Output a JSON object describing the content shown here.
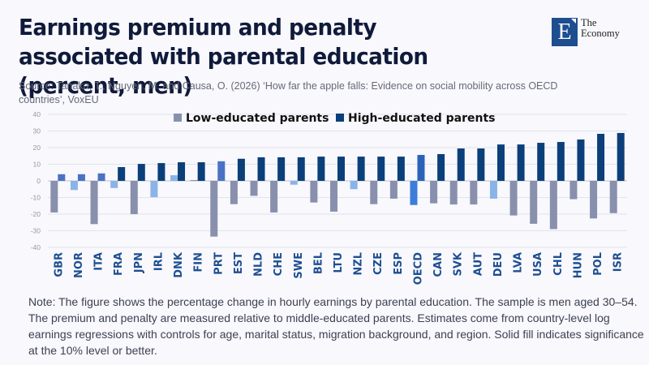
{
  "header": {
    "title": "Earnings premium and penalty associated with parental education (percent, men)",
    "source": "Source: Tanaka, T., Nguyen, M. and Causa, O. (2026) ‘How far the apple falls: Evidence on social mobility across OECD countries’, VoxEU"
  },
  "logo": {
    "letter": "E",
    "line1": "The",
    "line2": "Economy"
  },
  "note": "Note: The figure shows the percentage change in hourly earnings by parental education. The sample is men aged 30–54. The premium and penalty are measured relative to middle-educated parents. Estimates come from country-level log earnings regressions with controls for age, marital status, migration background, and region. Solid fill indicates significance at the 10% level or better.",
  "colors": {
    "low_significant": "#8890ad",
    "low_not_significant": "#8ab4e8",
    "high_significant": "#0b3f7a",
    "high_not_significant": "#4a72c4",
    "oecd_low": "#3b7dd8",
    "oecd_high": "#2a62b8",
    "gridline": "#e2e4ea",
    "zero_line": "#d4d6dc"
  },
  "chart_data": {
    "type": "bar",
    "title": "Earnings premium and penalty associated with parental education (percent, men)",
    "xlabel": "",
    "ylabel": "",
    "ylim": [
      -40,
      40
    ],
    "yticks": [
      40,
      30,
      20,
      10,
      0,
      -10,
      -20,
      -30,
      -40
    ],
    "grid": true,
    "legend_position": "top-center",
    "categories": [
      "GBR",
      "NOR",
      "ITA",
      "FRA",
      "JPN",
      "IRL",
      "DNK",
      "FIN",
      "PRT",
      "EST",
      "NLD",
      "CHE",
      "SWE",
      "BEL",
      "LTU",
      "NZL",
      "CZE",
      "ESP",
      "OECD",
      "CAN",
      "SVK",
      "AUT",
      "DEU",
      "LVA",
      "USA",
      "CHL",
      "HUN",
      "POL",
      "ISR"
    ],
    "series": [
      {
        "name": "Low-educated parents",
        "values": [
          -19,
          -5.5,
          -26,
          -4.3,
          -20,
          -9.8,
          3.4,
          0.5,
          -33.5,
          -14,
          -9,
          -19,
          -2.3,
          -13,
          -18.5,
          -5,
          -14,
          -10.7,
          -14.5,
          -13.5,
          -14.2,
          -14.2,
          -10.7,
          -20.8,
          -25.8,
          -29,
          -11,
          -22.6,
          -19.4
        ],
        "significant": [
          true,
          false,
          true,
          false,
          true,
          false,
          false,
          true,
          true,
          true,
          true,
          true,
          false,
          true,
          true,
          false,
          true,
          true,
          true,
          true,
          true,
          true,
          false,
          true,
          true,
          true,
          true,
          true,
          true
        ]
      },
      {
        "name": "High-educated parents",
        "values": [
          4,
          4,
          4.5,
          8.3,
          10.2,
          10.7,
          11.2,
          11.2,
          11.8,
          13.3,
          14.2,
          14.2,
          14.2,
          14.6,
          14.6,
          14.6,
          14.6,
          14.6,
          15.6,
          16.1,
          19.5,
          19.5,
          21.9,
          21.9,
          22.9,
          23.4,
          24.9,
          28.3,
          28.8
        ],
        "significant": [
          false,
          false,
          false,
          true,
          true,
          true,
          true,
          true,
          false,
          true,
          true,
          true,
          true,
          true,
          true,
          true,
          true,
          true,
          true,
          true,
          true,
          true,
          true,
          true,
          true,
          true,
          true,
          true,
          true
        ]
      }
    ],
    "highlight_category": "OECD"
  }
}
